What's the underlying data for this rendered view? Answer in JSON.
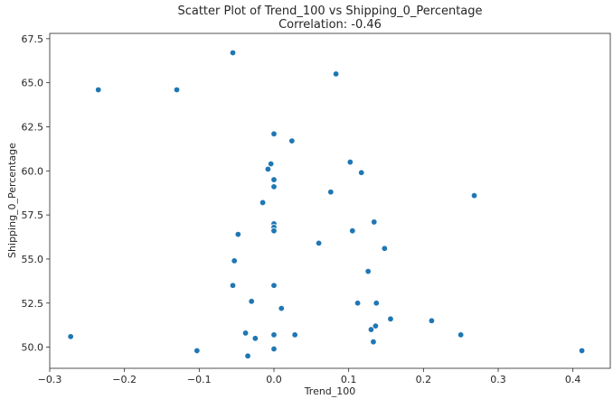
{
  "chart_data": {
    "type": "scatter",
    "title": "Scatter Plot of Trend_100 vs Shipping_0_Percentage",
    "subtitle": "Correlation: -0.46",
    "xlabel": "Trend_100",
    "ylabel": "Shipping_0_Percentage",
    "xlim": [
      -0.3,
      0.45
    ],
    "ylim": [
      48.8,
      67.8
    ],
    "x_ticks": [
      -0.3,
      -0.2,
      -0.1,
      0.0,
      0.1,
      0.2,
      0.3,
      0.4
    ],
    "x_tick_labels": [
      "−0.3",
      "−0.2",
      "−0.1",
      "0.0",
      "0.1",
      "0.2",
      "0.3",
      "0.4"
    ],
    "y_ticks": [
      50.0,
      52.5,
      55.0,
      57.5,
      60.0,
      62.5,
      65.0,
      67.5
    ],
    "y_tick_labels": [
      "50.0",
      "52.5",
      "55.0",
      "57.5",
      "60.0",
      "62.5",
      "65.0",
      "67.5"
    ],
    "grid": false,
    "point_color": "#1f77b4",
    "points": [
      {
        "x": -0.272,
        "y": 50.6
      },
      {
        "x": -0.235,
        "y": 64.6
      },
      {
        "x": -0.13,
        "y": 64.6
      },
      {
        "x": -0.103,
        "y": 49.8
      },
      {
        "x": -0.055,
        "y": 66.7
      },
      {
        "x": -0.055,
        "y": 53.5
      },
      {
        "x": -0.053,
        "y": 54.9
      },
      {
        "x": -0.048,
        "y": 56.4
      },
      {
        "x": -0.038,
        "y": 50.8
      },
      {
        "x": -0.035,
        "y": 49.5
      },
      {
        "x": -0.03,
        "y": 52.6
      },
      {
        "x": -0.025,
        "y": 50.5
      },
      {
        "x": -0.015,
        "y": 58.2
      },
      {
        "x": -0.008,
        "y": 60.1
      },
      {
        "x": -0.004,
        "y": 60.4
      },
      {
        "x": 0.0,
        "y": 62.1
      },
      {
        "x": 0.0,
        "y": 59.5
      },
      {
        "x": 0.0,
        "y": 59.1
      },
      {
        "x": 0.0,
        "y": 57.0
      },
      {
        "x": 0.0,
        "y": 56.8
      },
      {
        "x": 0.0,
        "y": 56.6
      },
      {
        "x": 0.0,
        "y": 53.5
      },
      {
        "x": 0.0,
        "y": 50.7
      },
      {
        "x": 0.0,
        "y": 49.9
      },
      {
        "x": 0.01,
        "y": 52.2
      },
      {
        "x": 0.024,
        "y": 61.7
      },
      {
        "x": 0.028,
        "y": 50.7
      },
      {
        "x": 0.06,
        "y": 55.9
      },
      {
        "x": 0.076,
        "y": 58.8
      },
      {
        "x": 0.083,
        "y": 65.5
      },
      {
        "x": 0.102,
        "y": 60.5
      },
      {
        "x": 0.105,
        "y": 56.6
      },
      {
        "x": 0.112,
        "y": 52.5
      },
      {
        "x": 0.117,
        "y": 59.9
      },
      {
        "x": 0.126,
        "y": 54.3
      },
      {
        "x": 0.13,
        "y": 51.0
      },
      {
        "x": 0.133,
        "y": 50.3
      },
      {
        "x": 0.134,
        "y": 57.1
      },
      {
        "x": 0.136,
        "y": 51.2
      },
      {
        "x": 0.137,
        "y": 52.5
      },
      {
        "x": 0.148,
        "y": 55.6
      },
      {
        "x": 0.156,
        "y": 51.6
      },
      {
        "x": 0.211,
        "y": 51.5
      },
      {
        "x": 0.25,
        "y": 50.7
      },
      {
        "x": 0.268,
        "y": 58.6
      },
      {
        "x": 0.412,
        "y": 49.8
      }
    ]
  }
}
